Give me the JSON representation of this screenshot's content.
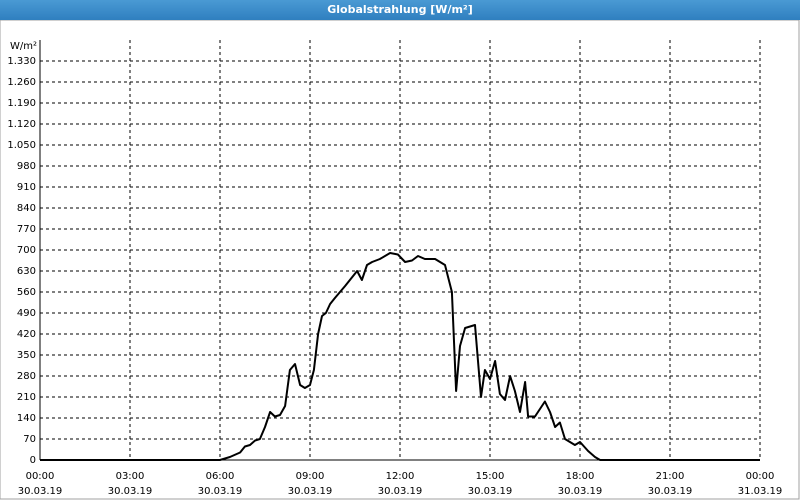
{
  "chart_data": {
    "type": "line",
    "title": "Globalstrahlung [W/m²]",
    "ylabel": "W/m²",
    "x": [
      0,
      6.0,
      6.33,
      6.67,
      6.83,
      7.0,
      7.17,
      7.33,
      7.5,
      7.67,
      7.83,
      8.0,
      8.17,
      8.33,
      8.5,
      8.67,
      8.83,
      9.0,
      9.13,
      9.27,
      9.4,
      9.53,
      9.67,
      9.83,
      10.0,
      10.17,
      10.33,
      10.57,
      10.73,
      10.9,
      11.07,
      11.33,
      11.67,
      11.93,
      12.17,
      12.4,
      12.6,
      12.83,
      13.17,
      13.5,
      13.73,
      13.87,
      14.0,
      14.17,
      14.5,
      14.7,
      14.83,
      15.0,
      15.17,
      15.33,
      15.5,
      15.67,
      15.83,
      16.0,
      16.17,
      16.27,
      16.5,
      16.83,
      17.0,
      17.17,
      17.33,
      17.5,
      17.83,
      18.0,
      18.27,
      18.5,
      18.67,
      24
    ],
    "values": [
      0,
      0,
      10,
      25,
      45,
      50,
      65,
      70,
      110,
      160,
      145,
      150,
      180,
      300,
      320,
      250,
      240,
      250,
      300,
      420,
      480,
      490,
      520,
      540,
      560,
      580,
      600,
      630,
      600,
      650,
      660,
      670,
      690,
      685,
      660,
      665,
      680,
      670,
      670,
      650,
      560,
      230,
      380,
      440,
      450,
      210,
      300,
      270,
      330,
      220,
      200,
      280,
      230,
      160,
      260,
      145,
      145,
      195,
      160,
      110,
      125,
      70,
      50,
      60,
      30,
      10,
      0,
      0
    ],
    "color": "#000000",
    "xlim": [
      0,
      24
    ],
    "xticks": [
      {
        "value": 0,
        "label": "00:00"
      },
      {
        "value": 3,
        "label": "03:00"
      },
      {
        "value": 6,
        "label": "06:00"
      },
      {
        "value": 9,
        "label": "09:00"
      },
      {
        "value": 12,
        "label": "12:00"
      },
      {
        "value": 15,
        "label": "15:00"
      },
      {
        "value": 18,
        "label": "18:00"
      },
      {
        "value": 21,
        "label": "21:00"
      },
      {
        "value": 24,
        "label": "00:00"
      }
    ],
    "xtick_dates": [
      "30.03.19",
      "30.03.19",
      "30.03.19",
      "30.03.19",
      "30.03.19",
      "30.03.19",
      "30.03.19",
      "30.03.19",
      "31.03.19"
    ],
    "ylim": [
      0,
      1400
    ],
    "yticks": [
      0,
      70,
      140,
      210,
      280,
      350,
      420,
      490,
      560,
      630,
      700,
      770,
      840,
      910,
      980,
      {
        "value": 1050,
        "label": "1.050"
      },
      {
        "value": 1120,
        "label": "1.120"
      },
      {
        "value": 1190,
        "label": "1.190"
      },
      {
        "value": 1260,
        "label": "1.260"
      },
      {
        "value": 1330,
        "label": "1.330"
      }
    ],
    "grid": true
  }
}
